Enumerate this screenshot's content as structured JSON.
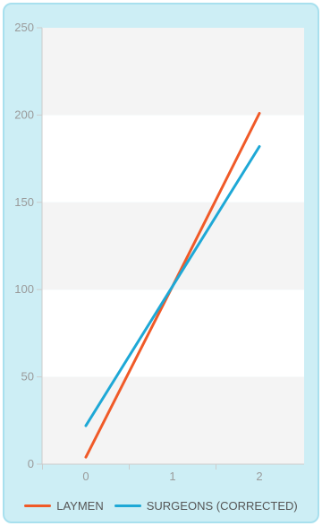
{
  "chart_data": {
    "type": "line",
    "title": "",
    "xlabel": "",
    "ylabel": "",
    "x": [
      0,
      1,
      2
    ],
    "x_tick_labels": [
      "0",
      "1",
      "2"
    ],
    "y_tick_labels": [
      "0",
      "50",
      "100",
      "150",
      "200",
      "250"
    ],
    "ylim": [
      0,
      250
    ],
    "grid": "horizontal alternating bands",
    "legend_position": "bottom",
    "series": [
      {
        "name": "LAYMEN",
        "color": "#f05a28",
        "values": [
          4,
          102,
          201
        ]
      },
      {
        "name": "SURGEONS (CORRECTED)",
        "color": "#1ea8d6",
        "values": [
          22,
          102,
          182
        ]
      }
    ]
  },
  "colors": {
    "panel_background": "#cdeef5",
    "band_light": "#f4f4f4",
    "band_white": "#ffffff",
    "axis": "#cccccc",
    "tick_text": "#9a9a9a",
    "legend_text": "#555555"
  }
}
